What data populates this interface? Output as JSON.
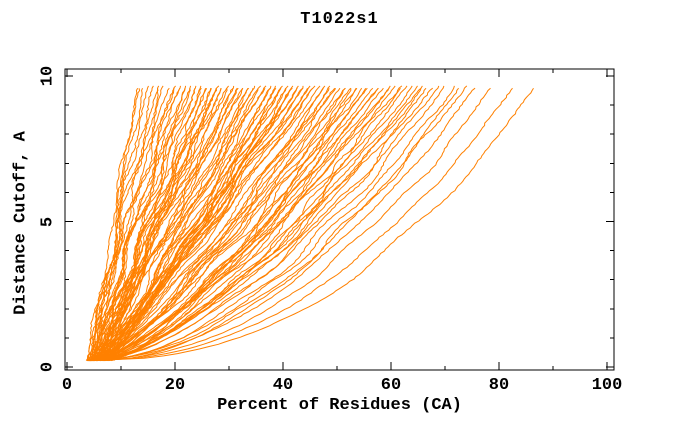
{
  "window": {
    "background": "#ffffff"
  },
  "chart_data": {
    "type": "line",
    "title": "T1022s1",
    "xlabel": "Percent of Residues (CA)",
    "ylabel": "Distance Cutoff, A",
    "xlim": [
      0,
      100
    ],
    "ylim": [
      0,
      10
    ],
    "x_major_ticks": [
      0,
      20,
      40,
      60,
      80,
      100
    ],
    "x_minor_step": 10,
    "y_major_ticks": [
      0,
      5,
      10
    ],
    "y_minor_step": 1,
    "grid": false,
    "legend": "none",
    "series_color": "#ff8000",
    "axis_color": "#000000",
    "curve_y_start": 0.22,
    "curve_y_end": 9.7,
    "curves_s_e_p_seed": [
      [
        4.0,
        87,
        0.44,
        11
      ],
      [
        4.5,
        83,
        0.47,
        72
      ],
      [
        5.0,
        79,
        0.5,
        133
      ],
      [
        4.2,
        76,
        0.52,
        194
      ],
      [
        4.8,
        74,
        0.55,
        21
      ],
      [
        5.5,
        72,
        0.57,
        82
      ],
      [
        6.0,
        70,
        0.58,
        143
      ],
      [
        4.3,
        69,
        0.6,
        204
      ],
      [
        5.2,
        68,
        0.61,
        265
      ],
      [
        6.5,
        73,
        0.54,
        326
      ],
      [
        4.0,
        67,
        0.62,
        31
      ],
      [
        4.6,
        66,
        0.63,
        92
      ],
      [
        5.3,
        65,
        0.65,
        153
      ],
      [
        6.1,
        64,
        0.66,
        214
      ],
      [
        6.8,
        63,
        0.67,
        275
      ],
      [
        7.4,
        62,
        0.68,
        336
      ],
      [
        3.8,
        61,
        0.69,
        397
      ],
      [
        4.4,
        60,
        0.7,
        458
      ],
      [
        5.0,
        59,
        0.71,
        519
      ],
      [
        5.7,
        58,
        0.72,
        580
      ],
      [
        6.3,
        57,
        0.73,
        641
      ],
      [
        7.0,
        56,
        0.74,
        702
      ],
      [
        7.7,
        55,
        0.75,
        763
      ],
      [
        4.1,
        66,
        0.64,
        824
      ],
      [
        4.9,
        62,
        0.69,
        885
      ],
      [
        5.6,
        58,
        0.73,
        946
      ],
      [
        6.4,
        56,
        0.76,
        87
      ],
      [
        7.1,
        60,
        0.7,
        148
      ],
      [
        3.9,
        54,
        0.72,
        41
      ],
      [
        4.5,
        53,
        0.74,
        102
      ],
      [
        5.2,
        52,
        0.76,
        163
      ],
      [
        5.9,
        51,
        0.78,
        224
      ],
      [
        6.6,
        50,
        0.8,
        285
      ],
      [
        7.3,
        49,
        0.82,
        346
      ],
      [
        8.0,
        48,
        0.84,
        407
      ],
      [
        3.7,
        47,
        0.86,
        468
      ],
      [
        4.3,
        46,
        0.88,
        529
      ],
      [
        5.0,
        45,
        0.9,
        590
      ],
      [
        5.7,
        44,
        0.92,
        651
      ],
      [
        6.4,
        43,
        0.94,
        712
      ],
      [
        7.1,
        42,
        0.95,
        773
      ],
      [
        7.8,
        54,
        0.7,
        834
      ],
      [
        4.0,
        52,
        0.75,
        895
      ],
      [
        4.7,
        50,
        0.79,
        956
      ],
      [
        5.4,
        48,
        0.83,
        97
      ],
      [
        6.1,
        46,
        0.87,
        158
      ],
      [
        6.8,
        44,
        0.91,
        219
      ],
      [
        7.5,
        42,
        0.94,
        280
      ],
      [
        8.2,
        53,
        0.73,
        341
      ],
      [
        4.2,
        49,
        0.81,
        402
      ],
      [
        4.9,
        45,
        0.89,
        463
      ],
      [
        5.6,
        43,
        0.93,
        524
      ],
      [
        3.6,
        41,
        0.84,
        51
      ],
      [
        4.2,
        40,
        0.86,
        112
      ],
      [
        4.9,
        39,
        0.88,
        173
      ],
      [
        5.6,
        38,
        0.9,
        234
      ],
      [
        6.3,
        37,
        0.92,
        295
      ],
      [
        7.0,
        36,
        0.94,
        356
      ],
      [
        7.7,
        35,
        0.96,
        417
      ],
      [
        8.4,
        34,
        0.98,
        478
      ],
      [
        3.8,
        33,
        1.0,
        539
      ],
      [
        4.4,
        32,
        1.02,
        600
      ],
      [
        5.1,
        31,
        1.04,
        661
      ],
      [
        5.8,
        30,
        1.06,
        722
      ],
      [
        6.5,
        41,
        0.85,
        783
      ],
      [
        7.2,
        40,
        0.88,
        844
      ],
      [
        7.9,
        39,
        0.91,
        905
      ],
      [
        8.6,
        38,
        0.94,
        966
      ],
      [
        4.1,
        37,
        0.97,
        107
      ],
      [
        4.8,
        36,
        1.0,
        168
      ],
      [
        5.5,
        35,
        1.03,
        229
      ],
      [
        6.2,
        34,
        1.05,
        290
      ],
      [
        6.9,
        33,
        1.08,
        351
      ],
      [
        7.6,
        32,
        1.1,
        412
      ],
      [
        8.3,
        31,
        0.99,
        473
      ],
      [
        4.5,
        30,
        1.07,
        534
      ],
      [
        5.2,
        42,
        0.82,
        595
      ],
      [
        5.9,
        40,
        0.87,
        656
      ],
      [
        3.5,
        29,
        1.0,
        61
      ],
      [
        4.1,
        28,
        1.02,
        122
      ],
      [
        4.7,
        27,
        1.05,
        183
      ],
      [
        5.4,
        26,
        1.07,
        244
      ],
      [
        6.1,
        25,
        1.1,
        305
      ],
      [
        6.8,
        24,
        1.12,
        366
      ],
      [
        7.5,
        23,
        1.15,
        427
      ],
      [
        8.2,
        22,
        1.17,
        488
      ],
      [
        3.9,
        21,
        1.2,
        549
      ],
      [
        4.5,
        20,
        1.22,
        610
      ],
      [
        5.2,
        19,
        1.25,
        671
      ],
      [
        5.9,
        29,
        1.01,
        732
      ],
      [
        6.6,
        28,
        1.04,
        793
      ],
      [
        7.3,
        27,
        1.08,
        854
      ],
      [
        8.0,
        26,
        1.11,
        915
      ],
      [
        8.7,
        25,
        1.14,
        976
      ],
      [
        4.3,
        24,
        1.16,
        117
      ],
      [
        5.0,
        23,
        1.19,
        178
      ],
      [
        5.7,
        22,
        1.21,
        239
      ],
      [
        6.4,
        21,
        1.24,
        300
      ],
      [
        7.1,
        20,
        1.18,
        361
      ],
      [
        7.8,
        28,
        1.06,
        422
      ],
      [
        3.6,
        18,
        1.15,
        71
      ],
      [
        4.2,
        17,
        1.2,
        132
      ],
      [
        4.8,
        16,
        1.25,
        193
      ],
      [
        5.5,
        15,
        1.3,
        254
      ],
      [
        6.2,
        14,
        1.35,
        315
      ],
      [
        6.9,
        13,
        1.4,
        376
      ],
      [
        7.6,
        17,
        1.22,
        437
      ],
      [
        5.0,
        13.5,
        1.33,
        498
      ]
    ]
  }
}
